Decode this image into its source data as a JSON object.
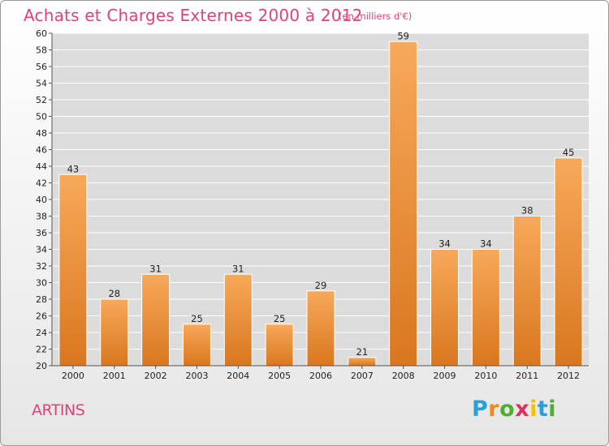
{
  "title": "Achats et Charges Externes 2000 à 2012",
  "subtitle": "(en milliers d'€)",
  "commune": "ARTINS",
  "logo": {
    "letters": [
      "P",
      "r",
      "o",
      "x",
      "i",
      "t",
      "i"
    ],
    "colors": [
      "#2a9fd8",
      "#f08a1c",
      "#4caf2e",
      "#e0305c",
      "#f2c200",
      "#2a9fd8",
      "#4caf2e"
    ]
  },
  "colors": {
    "accent": "#e0417a",
    "bar_top": "#f7a95a",
    "bar_bottom": "#d9771f"
  },
  "chart_data": {
    "type": "bar",
    "title": "Achats et Charges Externes 2000 à 2012",
    "subtitle": "(en milliers d'€)",
    "categories": [
      "2000",
      "2001",
      "2002",
      "2003",
      "2004",
      "2005",
      "2006",
      "2007",
      "2008",
      "2009",
      "2010",
      "2011",
      "2012"
    ],
    "values": [
      43,
      28,
      31,
      25,
      31,
      25,
      29,
      21,
      59,
      34,
      34,
      38,
      45
    ],
    "xlabel": "",
    "ylabel": "",
    "ylim": [
      20,
      60
    ],
    "yticks": [
      20,
      22,
      24,
      26,
      28,
      30,
      32,
      34,
      36,
      38,
      40,
      42,
      44,
      46,
      48,
      50,
      52,
      54,
      56,
      58,
      60
    ],
    "grid": true,
    "data_labels": true
  }
}
